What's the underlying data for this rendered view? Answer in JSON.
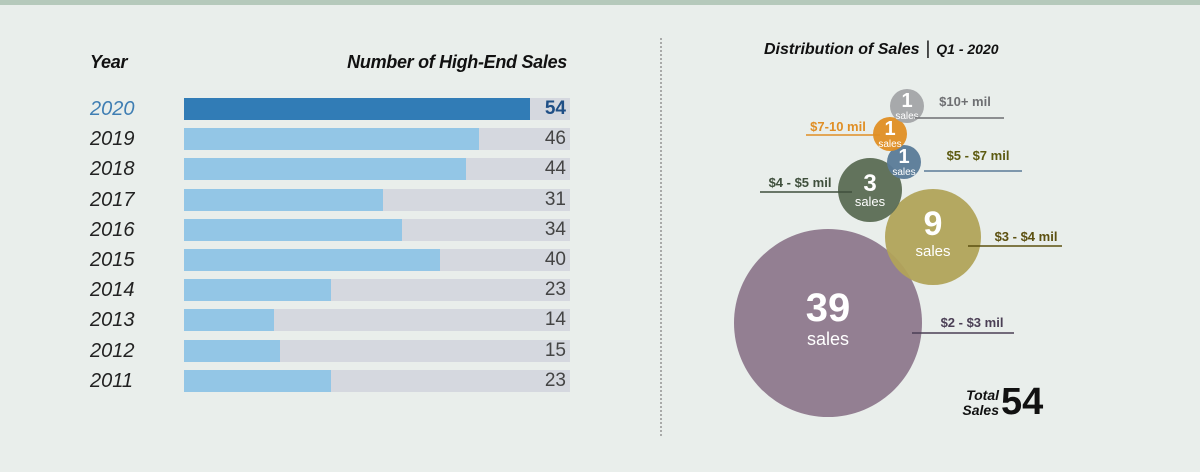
{
  "left_chart": {
    "year_header": "Year",
    "sales_header": "Number of High-End Sales",
    "max": 54
  },
  "right_chart": {
    "title": "Distribution of Sales",
    "separator": "|",
    "subtitle": "Q1 - 2020",
    "total_label_line1": "Total",
    "total_label_line2": "Sales",
    "total_value": "54"
  },
  "chart_data": [
    {
      "type": "bar",
      "orientation": "horizontal",
      "title": "Number of High-End Sales",
      "xlabel": "",
      "ylabel": "Year",
      "categories": [
        "2020",
        "2019",
        "2018",
        "2017",
        "2016",
        "2015",
        "2014",
        "2013",
        "2012",
        "2011"
      ],
      "values": [
        54,
        46,
        44,
        31,
        34,
        40,
        23,
        14,
        15,
        23
      ],
      "xlim": [
        0,
        54
      ],
      "highlight": "2020",
      "colors": {
        "highlight": "#317cb6",
        "default": "#93c6e6",
        "track": "#d5d8df"
      }
    },
    {
      "type": "bubble",
      "title": "Distribution of Sales | Q1 - 2020",
      "unit_label": "sales",
      "series": [
        {
          "name": "$10+ mil",
          "value": 1,
          "color": "#a3a4a8",
          "label_color": "#6e6f72"
        },
        {
          "name": "$7-10 mil",
          "value": 1,
          "color": "#e08e24",
          "label_color": "#e08e24"
        },
        {
          "name": "$5 - $7 mil",
          "value": 1,
          "color": "#5a7a98",
          "label_color": "#5c5a10"
        },
        {
          "name": "$4 - $5 mil",
          "value": 3,
          "color": "#5b6b54",
          "label_color": "#3f4f3c"
        },
        {
          "name": "$3 - $4 mil",
          "value": 9,
          "color": "#b1a35a",
          "label_color": "#5c5010"
        },
        {
          "name": "$2 - $3 mil",
          "value": 39,
          "color": "#8e788d",
          "label_color": "#4b3f55"
        }
      ],
      "total": 54
    }
  ]
}
